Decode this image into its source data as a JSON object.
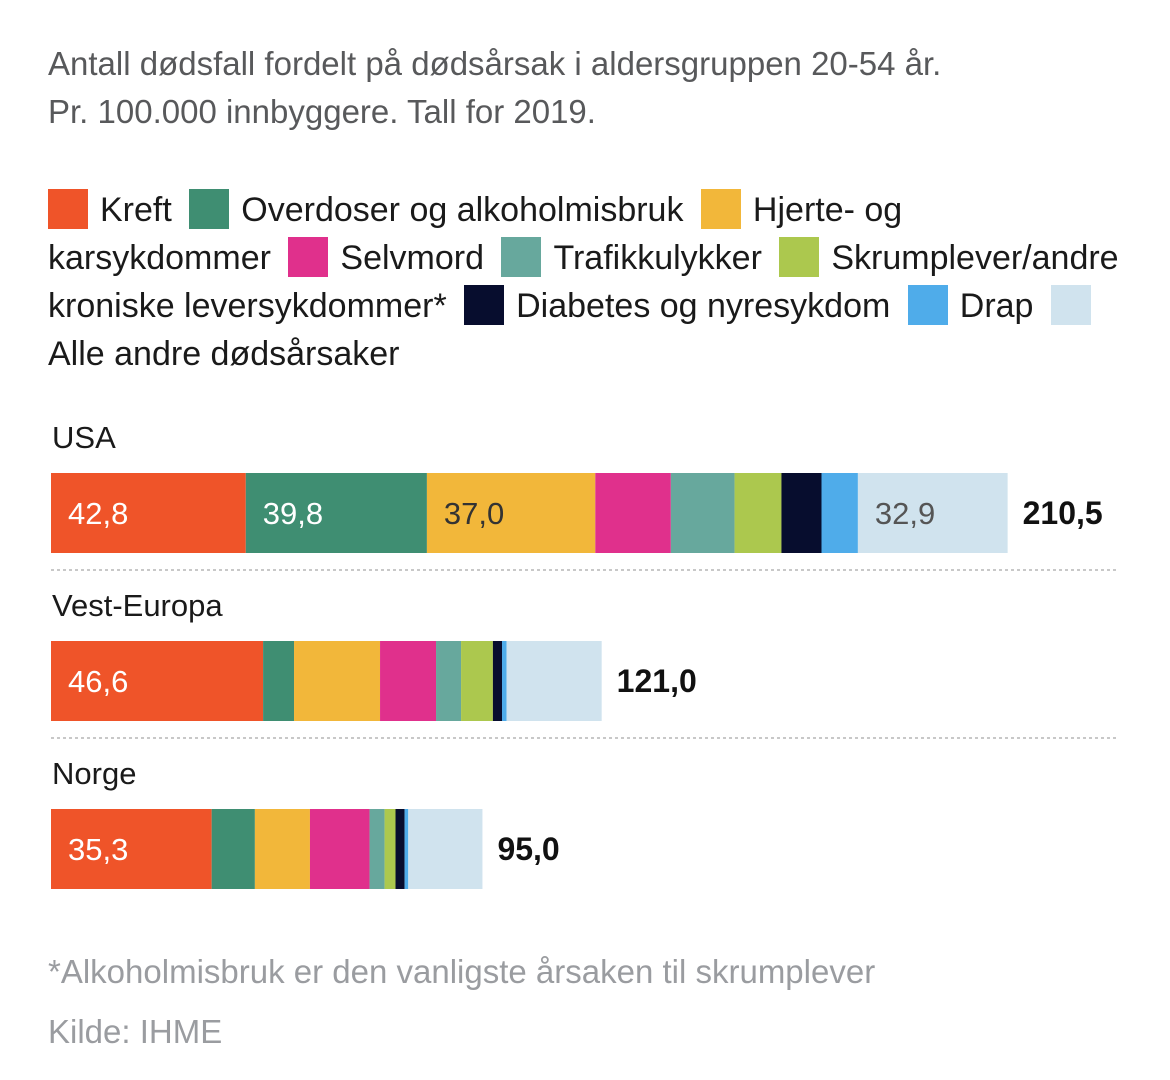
{
  "subtitle_line1": "Antall dødsfall fordelt på dødsårsak i aldersgruppen 20-54 år.",
  "subtitle_line2": "Pr. 100.000 innbyggere. Tall for 2019.",
  "footnote": "*Alkoholmisbruk er den vanligste årsaken til skrumplever",
  "source": "Kilde: IHME",
  "chart_data": {
    "type": "bar",
    "orientation": "horizontal",
    "stacked": true,
    "categories": [
      "USA",
      "Vest-Europa",
      "Norge"
    ],
    "totals": [
      "210,5",
      "121,0",
      "95,0"
    ],
    "total_values": [
      210.5,
      121.0,
      95.0
    ],
    "legend_placement": "top",
    "grid": false,
    "series": [
      {
        "name": "Kreft",
        "color": "#ef5429",
        "values": [
          42.8,
          46.6,
          35.3
        ],
        "labels": [
          "42,8",
          "46,6",
          "35,3"
        ],
        "label_color": "#ffffff"
      },
      {
        "name": "Overdoser og alkoholmisbruk",
        "color": "#3f8e72",
        "values": [
          39.8,
          6.8,
          9.5
        ],
        "labels": [
          "39,8",
          "",
          ""
        ],
        "label_color": "#ffffff"
      },
      {
        "name": "Hjerte- og karsykdommer",
        "color": "#f2b73a",
        "values": [
          37.0,
          18.9,
          12.1
        ],
        "labels": [
          "37,0",
          "",
          ""
        ],
        "label_color": "#333333"
      },
      {
        "name": "Selvmord",
        "color": "#e0308c",
        "values": [
          16.6,
          12.3,
          13.1
        ],
        "labels": [
          "",
          "",
          ""
        ],
        "label_color": "#ffffff"
      },
      {
        "name": "Trafikkulykker",
        "color": "#67a89d",
        "values": [
          14.0,
          5.5,
          3.3
        ],
        "labels": [
          "",
          "",
          ""
        ],
        "label_color": "#ffffff"
      },
      {
        "name": "Skrumplever/andre kroniske leversykdommer*",
        "color": "#acc84e",
        "values": [
          10.3,
          7.0,
          2.4
        ],
        "labels": [
          "",
          "",
          ""
        ],
        "label_color": "#ffffff"
      },
      {
        "name": "Diabetes og nyresykdom",
        "color": "#070d2e",
        "values": [
          8.8,
          2.0,
          2.0
        ],
        "labels": [
          "",
          "",
          ""
        ],
        "label_color": "#ffffff"
      },
      {
        "name": "Drap",
        "color": "#4facea",
        "values": [
          8.0,
          1.0,
          0.8
        ],
        "labels": [
          "",
          "",
          ""
        ],
        "label_color": "#ffffff"
      },
      {
        "name": "Alle andre dødsårsaker",
        "color": "#d0e3ee",
        "values": [
          32.9,
          20.9,
          16.3
        ],
        "labels": [
          "32,9",
          "",
          ""
        ],
        "label_color": "#555555"
      }
    ]
  }
}
